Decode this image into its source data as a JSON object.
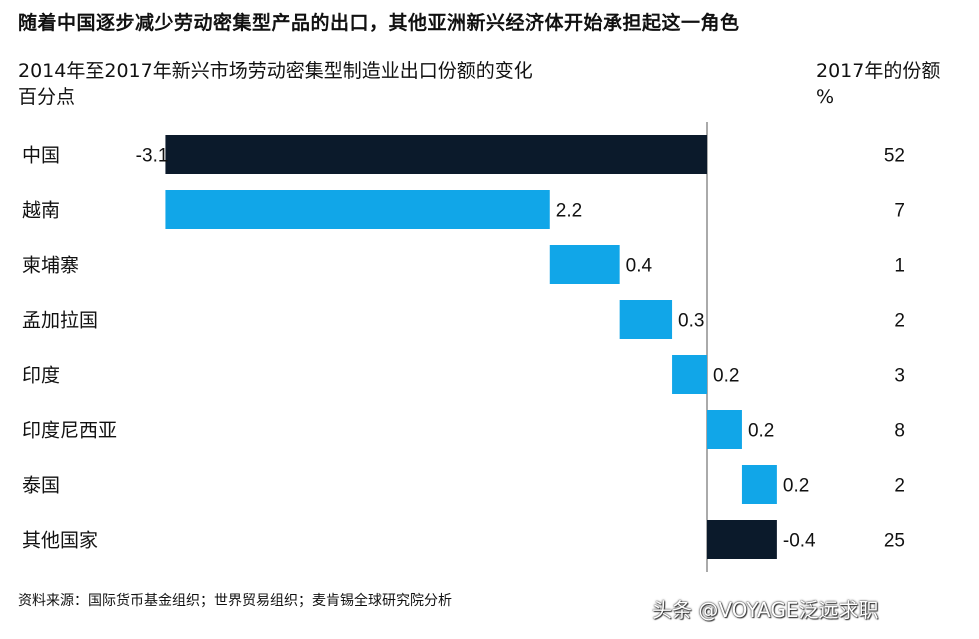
{
  "title": "随着中国逐步减少劳动密集型产品的出口，其他亚洲新兴经济体开始承担起这一角色",
  "subtitle_line1": "2014年至2017年新兴市场劳动密集型制造业出口份额的变化",
  "subtitle_line2": "百分点",
  "right_header_line1": "2017年的份额",
  "right_header_line2": "%",
  "source": "资料来源：国际货币基金组织；世界贸易组织；麦肯锡全球研究院分析",
  "watermark": "头条 @VOYAGE泛远求职",
  "colors": {
    "dark": "#0b1a2b",
    "light": "#11a6e8",
    "axis": "#555555"
  },
  "chart_data": {
    "type": "bar",
    "subtype": "waterfall",
    "categories": [
      "中国",
      "越南",
      "柬埔寨",
      "孟加拉国",
      "印度",
      "印度尼西亚",
      "泰国",
      "其他国家"
    ],
    "values": [
      -3.1,
      2.2,
      0.4,
      0.3,
      0.2,
      0.2,
      0.2,
      -0.4
    ],
    "value_labels": [
      "-3.1",
      "2.2",
      "0.4",
      "0.3",
      "0.2",
      "0.2",
      "0.2",
      "-0.4"
    ],
    "share_2017": [
      52,
      7,
      1,
      2,
      3,
      8,
      2,
      25
    ],
    "share_labels": [
      "52",
      "7",
      "1",
      "2",
      "3",
      "8",
      "2",
      "25"
    ],
    "bar_colors": [
      "dark",
      "light",
      "light",
      "light",
      "light",
      "light",
      "light",
      "dark"
    ],
    "baseline": 0,
    "grid": false,
    "legend": "none"
  }
}
